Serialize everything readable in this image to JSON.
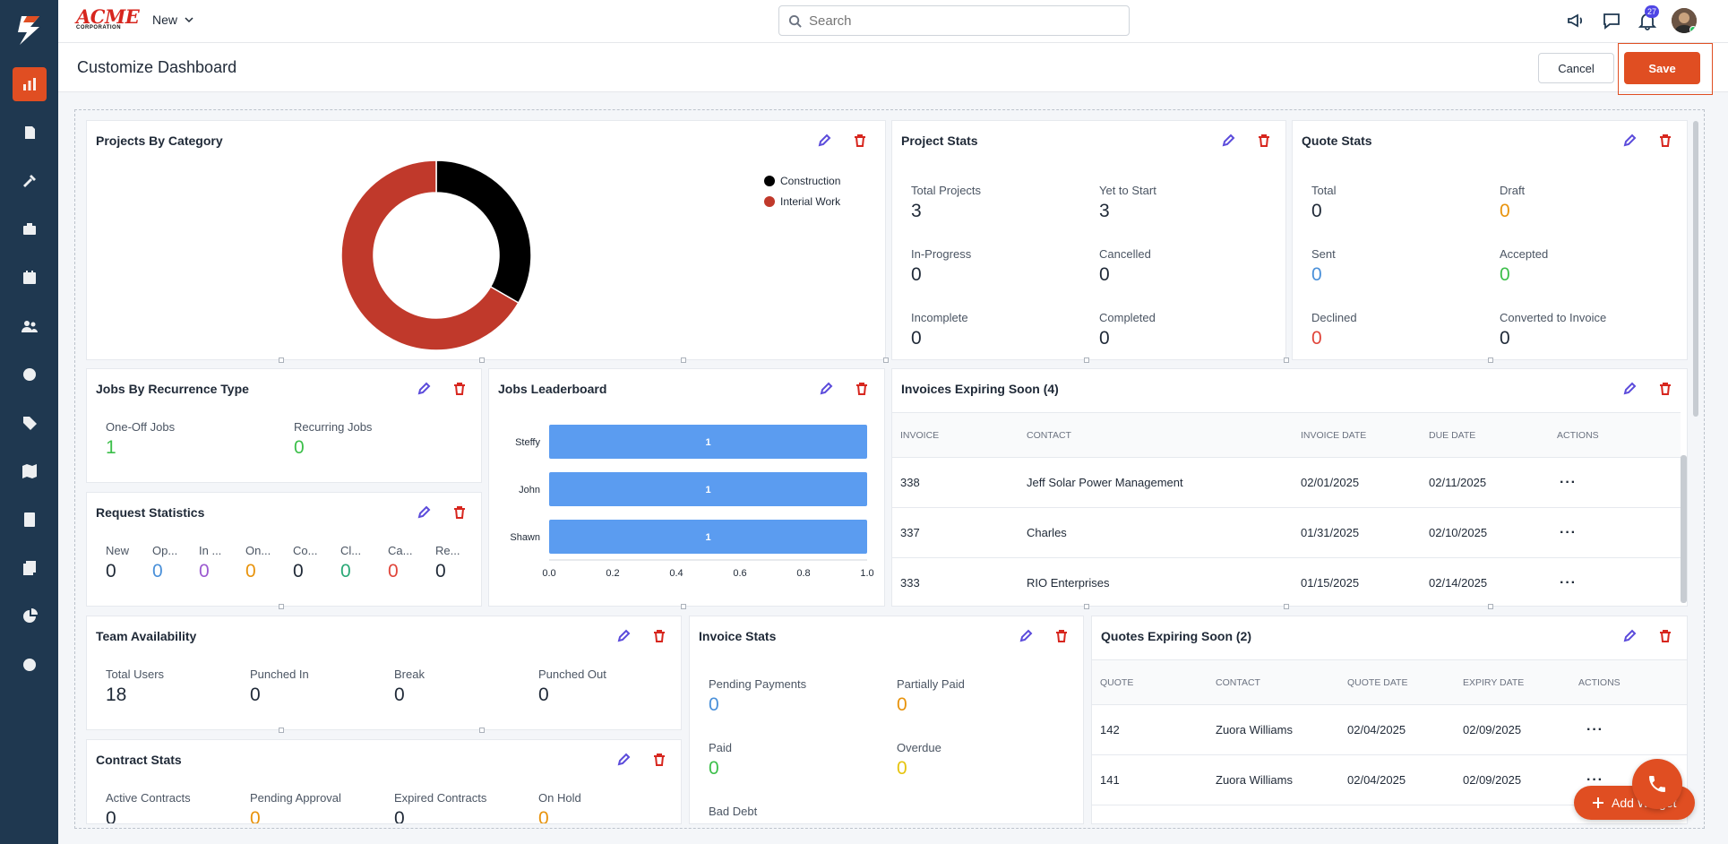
{
  "brand": {
    "name": "ACME",
    "subtitle": "CORPORATION"
  },
  "topbar": {
    "new_label": "New",
    "search_placeholder": "Search",
    "notification_count": "27"
  },
  "header": {
    "title": "Customize Dashboard",
    "cancel_label": "Cancel",
    "save_label": "Save"
  },
  "widgets": {
    "projects_by_category": {
      "title": "Projects By Category",
      "legend": [
        {
          "label": "Construction",
          "color": "#000000"
        },
        {
          "label": "Interial Work",
          "color": "#c0392b"
        }
      ]
    },
    "project_stats": {
      "title": "Project Stats",
      "items": [
        {
          "label": "Total Projects",
          "value": "3"
        },
        {
          "label": "Yet to Start",
          "value": "3"
        },
        {
          "label": "In-Progress",
          "value": "0"
        },
        {
          "label": "Cancelled",
          "value": "0"
        },
        {
          "label": "Incomplete",
          "value": "0"
        },
        {
          "label": "Completed",
          "value": "0"
        }
      ]
    },
    "quote_stats": {
      "title": "Quote Stats",
      "items": [
        {
          "label": "Total",
          "value": "0"
        },
        {
          "label": "Draft",
          "value": "0"
        },
        {
          "label": "Sent",
          "value": "0"
        },
        {
          "label": "Accepted",
          "value": "0"
        },
        {
          "label": "Declined",
          "value": "0"
        },
        {
          "label": "Converted to Invoice",
          "value": "0"
        }
      ]
    },
    "jobs_by_recurrence": {
      "title": "Jobs By Recurrence Type",
      "items": [
        {
          "label": "One-Off Jobs",
          "value": "1"
        },
        {
          "label": "Recurring Jobs",
          "value": "0"
        }
      ]
    },
    "jobs_leaderboard": {
      "title": "Jobs Leaderboard"
    },
    "invoices_expiring": {
      "title": "Invoices Expiring Soon  (4)",
      "columns": [
        "INVOICE",
        "CONTACT",
        "INVOICE DATE",
        "DUE DATE",
        "ACTIONS"
      ],
      "rows": [
        {
          "invoice": "338",
          "contact": "Jeff Solar Power Management",
          "invoice_date": "02/01/2025",
          "due_date": "02/11/2025",
          "actions": "···"
        },
        {
          "invoice": "337",
          "contact": "Charles",
          "invoice_date": "01/31/2025",
          "due_date": "02/10/2025",
          "actions": "···"
        },
        {
          "invoice": "333",
          "contact": "RIO Enterprises",
          "invoice_date": "01/15/2025",
          "due_date": "02/14/2025",
          "actions": "···"
        }
      ]
    },
    "request_statistics": {
      "title": "Request Statistics",
      "items": [
        {
          "label": "New",
          "value": "0"
        },
        {
          "label": "Op...",
          "value": "0"
        },
        {
          "label": "In ...",
          "value": "0"
        },
        {
          "label": "On...",
          "value": "0"
        },
        {
          "label": "Co...",
          "value": "0"
        },
        {
          "label": "Cl...",
          "value": "0"
        },
        {
          "label": "Ca...",
          "value": "0"
        },
        {
          "label": "Re...",
          "value": "0"
        }
      ]
    },
    "team_availability": {
      "title": "Team Availability",
      "items": [
        {
          "label": "Total Users",
          "value": "18"
        },
        {
          "label": "Punched In",
          "value": "0"
        },
        {
          "label": "Break",
          "value": "0"
        },
        {
          "label": "Punched Out",
          "value": "0"
        }
      ]
    },
    "invoice_stats": {
      "title": "Invoice Stats",
      "items": [
        {
          "label": "Pending Payments",
          "value": "0"
        },
        {
          "label": "Partially Paid",
          "value": "0"
        },
        {
          "label": "Paid",
          "value": "0"
        },
        {
          "label": "Overdue",
          "value": "0"
        },
        {
          "label": "Bad Debt",
          "value": ""
        }
      ]
    },
    "quotes_expiring": {
      "title": "Quotes Expiring Soon  (2)",
      "columns": [
        "QUOTE",
        "CONTACT",
        "QUOTE DATE",
        "EXPIRY DATE",
        "ACTIONS"
      ],
      "rows": [
        {
          "quote": "142",
          "contact": "Zuora Williams",
          "quote_date": "02/04/2025",
          "expiry_date": "02/09/2025",
          "actions": "···"
        },
        {
          "quote": "141",
          "contact": "Zuora Williams",
          "quote_date": "02/04/2025",
          "expiry_date": "02/09/2025",
          "actions": "···"
        }
      ]
    },
    "contract_stats": {
      "title": "Contract Stats",
      "items": [
        {
          "label": "Active Contracts",
          "value": "0"
        },
        {
          "label": "Pending Approval",
          "value": "0"
        },
        {
          "label": "Expired Contracts",
          "value": "0"
        },
        {
          "label": "On Hold",
          "value": "0"
        }
      ]
    }
  },
  "fab": {
    "add_widget_label": "Add Widget"
  },
  "chart_data": [
    {
      "type": "pie",
      "title": "Projects By Category",
      "categories": [
        "Construction",
        "Interial Work"
      ],
      "values": [
        1,
        2
      ],
      "colors": [
        "#000000",
        "#c0392b"
      ],
      "legend": "top-right"
    },
    {
      "type": "bar",
      "orientation": "horizontal",
      "title": "Jobs Leaderboard",
      "categories": [
        "Steffy",
        "John",
        "Shawn"
      ],
      "values": [
        1,
        1,
        1
      ],
      "xlim": [
        0,
        1.0
      ],
      "xticks": [
        "0.0",
        "0.2",
        "0.4",
        "0.6",
        "0.8",
        "1.0"
      ],
      "bar_color": "#5b9cf0"
    }
  ]
}
